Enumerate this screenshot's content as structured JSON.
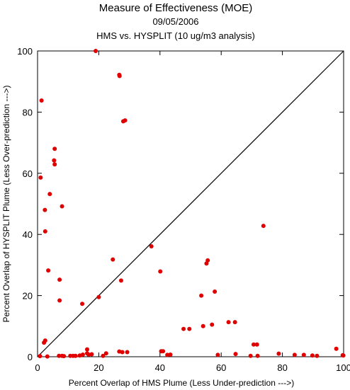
{
  "chart_data": {
    "type": "scatter",
    "title": "Measure of Effectiveness (MOE)",
    "subtitle_date": "09/05/2006",
    "subtitle_analysis": "HMS vs. HYSPLIT  (10 ug/m3 analysis)",
    "xlabel": "Percent Overlap of HMS Plume (Less Under-prediction --->)",
    "ylabel": "Percent Overlap of HYSPLIT Plume (Less Over-prediction --->)",
    "xlim": [
      0,
      100
    ],
    "ylim": [
      0,
      100
    ],
    "x_ticks": [
      0,
      20,
      40,
      60,
      80,
      100
    ],
    "y_ticks": [
      0,
      20,
      40,
      60,
      80,
      100
    ],
    "grid": false,
    "reference_line": "y = x",
    "point_color": "#e00000",
    "line_color": "#000000",
    "points": [
      {
        "x": 19.0,
        "y": 100.0
      },
      {
        "x": 26.7,
        "y": 92.2
      },
      {
        "x": 26.8,
        "y": 91.8
      },
      {
        "x": 1.3,
        "y": 83.8
      },
      {
        "x": 28.0,
        "y": 77.0
      },
      {
        "x": 28.6,
        "y": 77.3
      },
      {
        "x": 5.6,
        "y": 68.0
      },
      {
        "x": 5.4,
        "y": 64.2
      },
      {
        "x": 5.6,
        "y": 62.9
      },
      {
        "x": 1.0,
        "y": 58.6
      },
      {
        "x": 4.0,
        "y": 53.2
      },
      {
        "x": 8.0,
        "y": 49.2
      },
      {
        "x": 2.4,
        "y": 48.0
      },
      {
        "x": 2.5,
        "y": 41.0
      },
      {
        "x": 73.8,
        "y": 42.8
      },
      {
        "x": 37.2,
        "y": 36.1
      },
      {
        "x": 24.6,
        "y": 31.8
      },
      {
        "x": 55.6,
        "y": 31.5
      },
      {
        "x": 55.2,
        "y": 30.5
      },
      {
        "x": 3.5,
        "y": 28.2
      },
      {
        "x": 40.1,
        "y": 27.9
      },
      {
        "x": 7.2,
        "y": 25.2
      },
      {
        "x": 27.3,
        "y": 24.9
      },
      {
        "x": 57.9,
        "y": 21.3
      },
      {
        "x": 53.5,
        "y": 20.0
      },
      {
        "x": 20.0,
        "y": 19.5
      },
      {
        "x": 7.2,
        "y": 18.4
      },
      {
        "x": 14.6,
        "y": 17.3
      },
      {
        "x": 62.4,
        "y": 11.3
      },
      {
        "x": 64.5,
        "y": 11.3
      },
      {
        "x": 57.0,
        "y": 10.5
      },
      {
        "x": 54.1,
        "y": 10.0
      },
      {
        "x": 47.7,
        "y": 9.1
      },
      {
        "x": 49.6,
        "y": 9.1
      },
      {
        "x": 2.5,
        "y": 5.3
      },
      {
        "x": 2.1,
        "y": 4.6
      },
      {
        "x": 70.6,
        "y": 4.0
      },
      {
        "x": 71.7,
        "y": 4.0
      },
      {
        "x": 97.6,
        "y": 2.6
      },
      {
        "x": 16.2,
        "y": 2.4
      },
      {
        "x": 26.7,
        "y": 1.7
      },
      {
        "x": 27.7,
        "y": 1.5
      },
      {
        "x": 29.3,
        "y": 1.5
      },
      {
        "x": 40.4,
        "y": 1.8
      },
      {
        "x": 41.0,
        "y": 1.8
      },
      {
        "x": 22.4,
        "y": 1.1
      },
      {
        "x": 16.2,
        "y": 1.1
      },
      {
        "x": 78.8,
        "y": 1.0
      },
      {
        "x": 64.7,
        "y": 0.9
      },
      {
        "x": 14.8,
        "y": 0.7
      },
      {
        "x": 16.7,
        "y": 0.7
      },
      {
        "x": 17.7,
        "y": 0.8
      },
      {
        "x": 42.4,
        "y": 0.6
      },
      {
        "x": 43.4,
        "y": 0.7
      },
      {
        "x": 58.9,
        "y": 0.6
      },
      {
        "x": 84.0,
        "y": 0.6
      },
      {
        "x": 87.0,
        "y": 0.6
      },
      {
        "x": 89.8,
        "y": 0.4
      },
      {
        "x": 91.3,
        "y": 0.3
      },
      {
        "x": 99.7,
        "y": 0.5
      },
      {
        "x": 99.9,
        "y": 0.4
      },
      {
        "x": 7.0,
        "y": 0.3
      },
      {
        "x": 8.0,
        "y": 0.3
      },
      {
        "x": 8.6,
        "y": 0.2
      },
      {
        "x": 10.7,
        "y": 0.3
      },
      {
        "x": 11.6,
        "y": 0.3
      },
      {
        "x": 12.4,
        "y": 0.3
      },
      {
        "x": 13.8,
        "y": 0.4
      },
      {
        "x": 21.4,
        "y": 0.3
      },
      {
        "x": 69.6,
        "y": 0.3
      },
      {
        "x": 71.9,
        "y": 0.3
      },
      {
        "x": 0.8,
        "y": 0.2
      },
      {
        "x": 3.2,
        "y": 0.1
      }
    ]
  }
}
